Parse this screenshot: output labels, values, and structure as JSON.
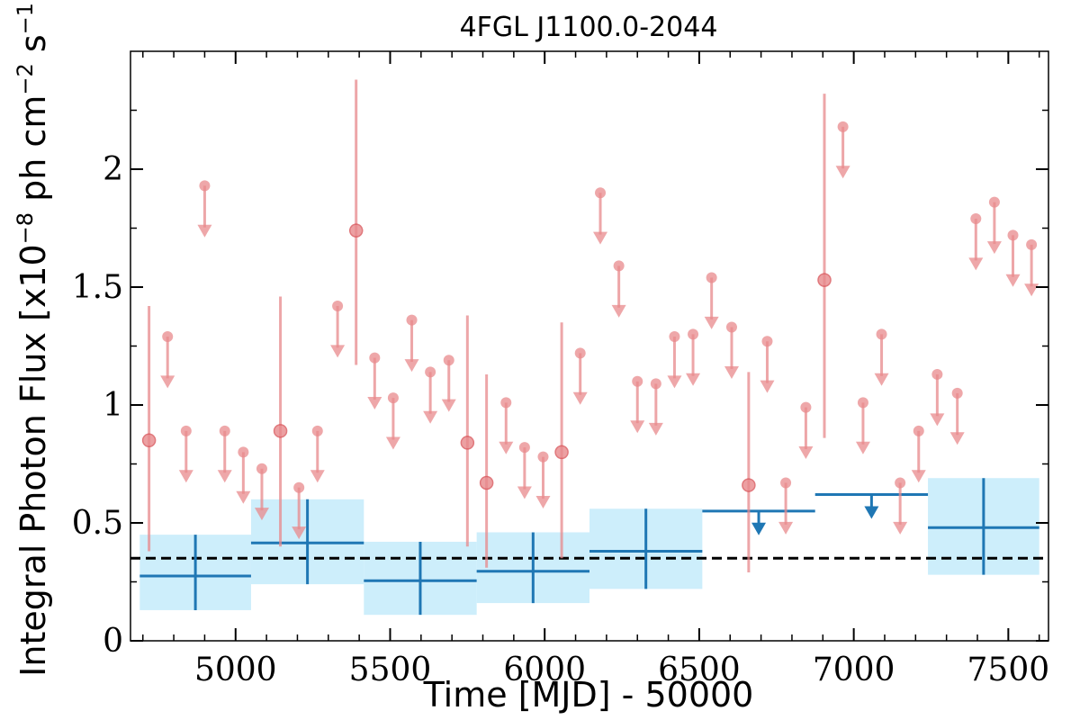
{
  "chart_data": {
    "type": "scatter",
    "title": "4FGL J1100.0-2044",
    "xlabel": "Time [MJD] - 50000",
    "ylabel": "Integral Photon Flux [x10^-8 ph cm^-2 s^-1]",
    "ylabel_parts": {
      "prefix": "Integral Photon Flux [x10",
      "exp1": "−8",
      "mid": " ph cm",
      "exp2": "−2",
      "mid2": " s",
      "exp3": "−1",
      "suffix": "]"
    },
    "xlim": [
      4660,
      7630
    ],
    "ylim": [
      0,
      2.5
    ],
    "xticks": [
      5000,
      5500,
      6000,
      6500,
      7000,
      7500
    ],
    "xtick_labels": [
      "5000",
      "5500",
      "6000",
      "6500",
      "7000",
      "7500"
    ],
    "yticks": [
      0,
      0.5,
      1,
      1.5,
      2
    ],
    "ytick_labels": [
      "0",
      "0.5",
      "1",
      "1.5",
      "2"
    ],
    "average_flux": 0.35,
    "grid": false,
    "colors": {
      "short_bins": "#e8898c",
      "long_bins": "#1f77b4",
      "long_band": "#cdeefb",
      "average_line": "#000000"
    },
    "short_bins": {
      "detections": [
        {
          "x": 4720,
          "y": 0.85,
          "ylo": 0.38,
          "yhi": 1.42
        },
        {
          "x": 5145,
          "y": 0.89,
          "ylo": 0.4,
          "yhi": 1.46
        },
        {
          "x": 5390,
          "y": 1.74,
          "ylo": 1.17,
          "yhi": 2.38
        },
        {
          "x": 5750,
          "y": 0.84,
          "ylo": 0.4,
          "yhi": 1.38
        },
        {
          "x": 5812,
          "y": 0.67,
          "ylo": 0.31,
          "yhi": 1.13
        },
        {
          "x": 6055,
          "y": 0.8,
          "ylo": 0.35,
          "yhi": 1.35
        },
        {
          "x": 6660,
          "y": 0.66,
          "ylo": 0.29,
          "yhi": 1.14
        },
        {
          "x": 6905,
          "y": 1.53,
          "ylo": 0.86,
          "yhi": 2.32
        }
      ],
      "upper_limits": [
        {
          "x": 4780,
          "y": 1.29
        },
        {
          "x": 4840,
          "y": 0.89
        },
        {
          "x": 4900,
          "y": 1.93
        },
        {
          "x": 4965,
          "y": 0.89
        },
        {
          "x": 5025,
          "y": 0.8
        },
        {
          "x": 5085,
          "y": 0.73
        },
        {
          "x": 5205,
          "y": 0.65
        },
        {
          "x": 5265,
          "y": 0.89
        },
        {
          "x": 5330,
          "y": 1.42
        },
        {
          "x": 5450,
          "y": 1.2
        },
        {
          "x": 5510,
          "y": 1.03
        },
        {
          "x": 5570,
          "y": 1.36
        },
        {
          "x": 5630,
          "y": 1.14
        },
        {
          "x": 5690,
          "y": 1.19
        },
        {
          "x": 5875,
          "y": 1.01
        },
        {
          "x": 5935,
          "y": 0.82
        },
        {
          "x": 5995,
          "y": 0.78
        },
        {
          "x": 6115,
          "y": 1.22
        },
        {
          "x": 6180,
          "y": 1.9
        },
        {
          "x": 6240,
          "y": 1.59
        },
        {
          "x": 6300,
          "y": 1.1
        },
        {
          "x": 6360,
          "y": 1.09
        },
        {
          "x": 6420,
          "y": 1.29
        },
        {
          "x": 6480,
          "y": 1.3
        },
        {
          "x": 6540,
          "y": 1.54
        },
        {
          "x": 6605,
          "y": 1.33
        },
        {
          "x": 6720,
          "y": 1.27
        },
        {
          "x": 6780,
          "y": 0.67
        },
        {
          "x": 6845,
          "y": 0.99
        },
        {
          "x": 6965,
          "y": 2.18
        },
        {
          "x": 7030,
          "y": 1.01
        },
        {
          "x": 7090,
          "y": 1.3
        },
        {
          "x": 7150,
          "y": 0.67
        },
        {
          "x": 7210,
          "y": 0.89
        },
        {
          "x": 7270,
          "y": 1.13
        },
        {
          "x": 7335,
          "y": 1.05
        },
        {
          "x": 7395,
          "y": 1.79
        },
        {
          "x": 7455,
          "y": 1.86
        },
        {
          "x": 7515,
          "y": 1.72
        },
        {
          "x": 7575,
          "y": 1.68
        }
      ]
    },
    "long_bins": {
      "detections": [
        {
          "x0": 4690,
          "x1": 5050,
          "y": 0.275,
          "ylo": 0.13,
          "yhi": 0.45
        },
        {
          "x0": 5050,
          "x1": 5415,
          "y": 0.415,
          "ylo": 0.24,
          "yhi": 0.6
        },
        {
          "x0": 5415,
          "x1": 5780,
          "y": 0.255,
          "ylo": 0.11,
          "yhi": 0.42
        },
        {
          "x0": 5780,
          "x1": 6145,
          "y": 0.295,
          "ylo": 0.16,
          "yhi": 0.46
        },
        {
          "x0": 6145,
          "x1": 6510,
          "y": 0.38,
          "ylo": 0.22,
          "yhi": 0.56
        },
        {
          "x0": 7240,
          "x1": 7600,
          "y": 0.48,
          "ylo": 0.28,
          "yhi": 0.69
        }
      ],
      "upper_limits": [
        {
          "x0": 6510,
          "x1": 6875,
          "y": 0.55
        },
        {
          "x0": 6875,
          "x1": 7240,
          "y": 0.62
        }
      ]
    }
  }
}
